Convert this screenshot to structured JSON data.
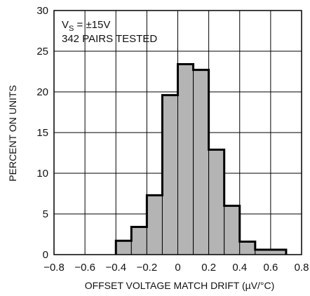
{
  "chart_data": {
    "type": "bar",
    "xlabel": "OFFSET VOLTAGE MATCH DRIFT (µV/°C)",
    "ylabel": "PERCENT ON UNITS",
    "xlim": [
      -0.8,
      0.8
    ],
    "ylim": [
      0,
      30
    ],
    "x_ticks": [
      "−0.8",
      "−0.6",
      "−0.4",
      "−0.2",
      "0",
      "0.2",
      "0.4",
      "0.6",
      "0.8"
    ],
    "y_ticks": [
      "0",
      "5",
      "10",
      "15",
      "20",
      "25",
      "30"
    ],
    "grid": true,
    "bins": [
      {
        "start": -0.4,
        "end": -0.3,
        "value": 1.7
      },
      {
        "start": -0.3,
        "end": -0.2,
        "value": 3.4
      },
      {
        "start": -0.2,
        "end": -0.1,
        "value": 7.3
      },
      {
        "start": -0.1,
        "end": 0.0,
        "value": 19.6
      },
      {
        "start": 0.0,
        "end": 0.1,
        "value": 23.4
      },
      {
        "start": 0.1,
        "end": 0.2,
        "value": 22.7
      },
      {
        "start": 0.2,
        "end": 0.3,
        "value": 12.9
      },
      {
        "start": 0.3,
        "end": 0.4,
        "value": 6.0
      },
      {
        "start": 0.4,
        "end": 0.5,
        "value": 1.6
      },
      {
        "start": 0.5,
        "end": 0.7,
        "value": 0.6
      }
    ],
    "annotation": {
      "condition_prefix": "V",
      "condition_subscript": "S",
      "condition_value": " = ±15V",
      "pairs": "342 PAIRS TESTED"
    },
    "colors": {
      "fill": "#b4b4b4",
      "outline": "#000000",
      "grid": "#000000"
    }
  }
}
